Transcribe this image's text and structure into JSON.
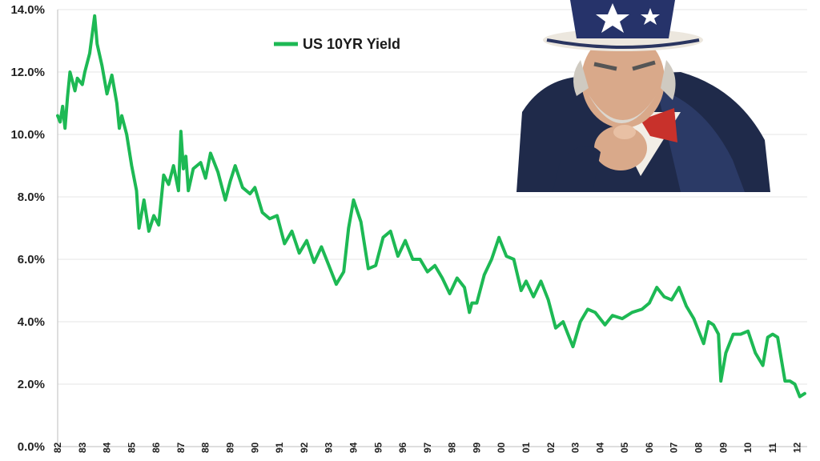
{
  "chart_data": {
    "type": "line",
    "title": "",
    "xlabel": "",
    "ylabel": "",
    "ylim": [
      0,
      14
    ],
    "y_tick_labels": [
      "0.0%",
      "2.0%",
      "4.0%",
      "6.0%",
      "8.0%",
      "10.0%",
      "12.0%",
      "14.0%"
    ],
    "x_tick_labels": [
      "82",
      "83",
      "84",
      "85",
      "86",
      "87",
      "88",
      "89",
      "90",
      "91",
      "92",
      "93",
      "94",
      "95",
      "96",
      "97",
      "98",
      "99",
      "00",
      "01",
      "02",
      "03",
      "04",
      "05",
      "06",
      "07",
      "08",
      "09",
      "10",
      "11",
      "12"
    ],
    "xlim": [
      1982,
      2012.4
    ],
    "grid": true,
    "legend_position": "top-center",
    "series": [
      {
        "name": "US 10YR Yield",
        "color": "#1db954",
        "x": [
          1982.0,
          1982.1,
          1982.2,
          1982.3,
          1982.4,
          1982.5,
          1982.7,
          1982.8,
          1983.0,
          1983.1,
          1983.3,
          1983.5,
          1983.6,
          1983.8,
          1984.0,
          1984.2,
          1984.4,
          1984.5,
          1984.6,
          1984.8,
          1984.9,
          1985.0,
          1985.2,
          1985.3,
          1985.5,
          1985.7,
          1985.9,
          1986.1,
          1986.2,
          1986.3,
          1986.5,
          1986.7,
          1986.9,
          1987.0,
          1987.1,
          1987.2,
          1987.3,
          1987.5,
          1987.8,
          1988.0,
          1988.2,
          1988.5,
          1988.8,
          1989.0,
          1989.2,
          1989.5,
          1989.8,
          1990.0,
          1990.3,
          1990.6,
          1990.9,
          1991.2,
          1991.5,
          1991.8,
          1992.1,
          1992.4,
          1992.7,
          1993.0,
          1993.3,
          1993.6,
          1993.8,
          1994.0,
          1994.3,
          1994.6,
          1994.9,
          1995.2,
          1995.5,
          1995.8,
          1996.1,
          1996.4,
          1996.7,
          1997.0,
          1997.3,
          1997.6,
          1997.9,
          1998.2,
          1998.5,
          1998.7,
          1998.8,
          1999.0,
          1999.3,
          1999.6,
          1999.9,
          2000.2,
          2000.5,
          2000.8,
          2001.0,
          2001.3,
          2001.6,
          2001.9,
          2002.2,
          2002.5,
          2002.7,
          2002.9,
          2003.2,
          2003.5,
          2003.8,
          2004.2,
          2004.5,
          2004.9,
          2005.3,
          2005.7,
          2006.0,
          2006.3,
          2006.6,
          2006.9,
          2007.2,
          2007.5,
          2007.8,
          2008.0,
          2008.2,
          2008.4,
          2008.6,
          2008.8,
          2008.9,
          2009.1,
          2009.4,
          2009.7,
          2010.0,
          2010.3,
          2010.6,
          2010.8,
          2011.0,
          2011.2,
          2011.5,
          2011.7,
          2011.9,
          2012.1,
          2012.3
        ],
        "values": [
          10.6,
          10.4,
          10.9,
          10.2,
          11.2,
          12.0,
          11.4,
          11.8,
          11.6,
          12.0,
          12.6,
          13.8,
          12.9,
          12.2,
          11.3,
          11.9,
          11.0,
          10.2,
          10.6,
          10.0,
          9.5,
          9.0,
          8.2,
          7.0,
          7.9,
          6.9,
          7.4,
          7.1,
          7.9,
          8.7,
          8.4,
          9.0,
          8.2,
          10.1,
          8.9,
          9.3,
          8.2,
          8.9,
          9.1,
          8.6,
          9.4,
          8.8,
          7.9,
          8.5,
          9.0,
          8.3,
          8.1,
          8.3,
          7.5,
          7.3,
          7.4,
          6.5,
          6.9,
          6.2,
          6.6,
          5.9,
          6.4,
          5.8,
          5.2,
          5.6,
          7.0,
          7.9,
          7.2,
          5.7,
          5.8,
          6.7,
          6.9,
          6.1,
          6.6,
          6.0,
          6.0,
          5.6,
          5.8,
          5.4,
          4.9,
          5.4,
          5.1,
          4.3,
          4.6,
          4.6,
          5.5,
          6.0,
          6.7,
          6.1,
          6.0,
          5.0,
          5.3,
          4.8,
          5.3,
          4.7,
          3.8,
          4.0,
          3.6,
          3.2,
          4.0,
          4.4,
          4.3,
          3.9,
          4.2,
          4.1,
          4.3,
          4.4,
          4.6,
          5.1,
          4.8,
          4.7,
          5.1,
          4.5,
          4.1,
          3.7,
          3.3,
          4.0,
          3.9,
          3.6,
          2.1,
          3.0,
          3.6,
          3.6,
          3.7,
          3.0,
          2.6,
          3.5,
          3.6,
          3.5,
          2.1,
          2.1,
          2.0,
          1.6,
          1.7
        ]
      }
    ]
  }
}
